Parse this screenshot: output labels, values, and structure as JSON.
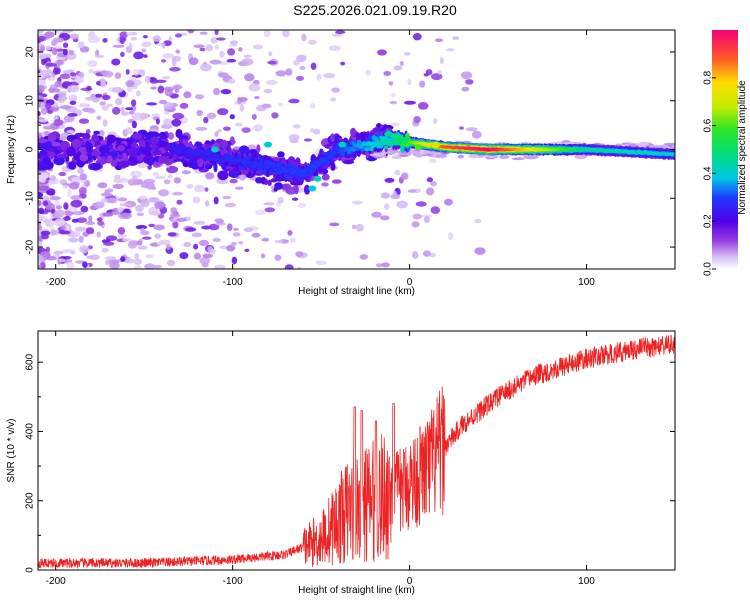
{
  "title": "S225.2026.021.09.19.R20",
  "chart_data": [
    {
      "type": "heatmap",
      "title": "S225.2026.021.09.19.R20",
      "xlabel": "Height of straight line (km)",
      "ylabel": "Frequency (Hz)",
      "xlim": [
        -210,
        150
      ],
      "ylim": [
        -24.5,
        24.5
      ],
      "xticks": [
        -200,
        -100,
        0,
        100
      ],
      "yticks": [
        -20,
        -10,
        0,
        10,
        20
      ],
      "colorbar": {
        "label": "Normalized spectral amplitude",
        "range": [
          0,
          1
        ],
        "ticks": [
          "0.0",
          "0.2",
          "0.4",
          "0.6",
          "0.8"
        ]
      },
      "ridge": {
        "description_points": [
          {
            "x": -130,
            "y": 0,
            "amp": 0.25
          },
          {
            "x": -60,
            "y": -5,
            "amp": 0.3
          },
          {
            "x": -40,
            "y": 0,
            "amp": 0.3
          },
          {
            "x": -10,
            "y": 2,
            "amp": 0.45
          },
          {
            "x": 20,
            "y": 0.5,
            "amp": 0.9
          },
          {
            "x": 45,
            "y": 0,
            "amp": 1.0
          },
          {
            "x": 100,
            "y": 0,
            "amp": 0.45
          },
          {
            "x": 150,
            "y": -1,
            "amp": 0.4
          }
        ]
      }
    },
    {
      "type": "line",
      "xlabel": "Height of straight line (km)",
      "ylabel": "SNR (10 * v/v)",
      "xlim": [
        -210,
        150
      ],
      "ylim": [
        0,
        690
      ],
      "xticks": [
        -200,
        -100,
        0,
        100
      ],
      "yticks": [
        0,
        200,
        400,
        600
      ],
      "series": [
        {
          "name": "SNR",
          "color": "#ee2222",
          "trend": [
            {
              "x": -210,
              "y": 20
            },
            {
              "x": -150,
              "y": 20
            },
            {
              "x": -100,
              "y": 30
            },
            {
              "x": -70,
              "y": 45
            },
            {
              "x": -50,
              "y": 90
            },
            {
              "x": -35,
              "y": 170
            },
            {
              "x": -20,
              "y": 200
            },
            {
              "x": -5,
              "y": 230
            },
            {
              "x": 10,
              "y": 290
            },
            {
              "x": 30,
              "y": 420
            },
            {
              "x": 50,
              "y": 500
            },
            {
              "x": 70,
              "y": 560
            },
            {
              "x": 100,
              "y": 610
            },
            {
              "x": 130,
              "y": 640
            },
            {
              "x": 150,
              "y": 650
            }
          ],
          "peaks": [
            {
              "x": -31,
              "y": 470
            },
            {
              "x": -27,
              "y": 460
            },
            {
              "x": -19,
              "y": 430
            },
            {
              "x": -9,
              "y": 480
            }
          ]
        }
      ]
    }
  ]
}
